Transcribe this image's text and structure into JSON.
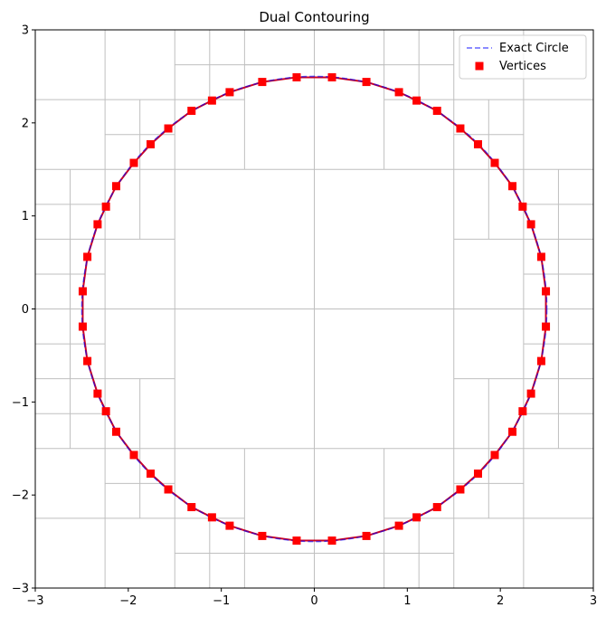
{
  "chart_data": {
    "type": "line",
    "title": "Dual Contouring",
    "xlabel": "",
    "ylabel": "",
    "xlim": [
      -3,
      3
    ],
    "ylim": [
      -3,
      3
    ],
    "x_ticks": [
      -3,
      -2,
      -1,
      0,
      1,
      2,
      3
    ],
    "y_ticks": [
      -3,
      -2,
      -1,
      0,
      1,
      2,
      3
    ],
    "x_tick_labels": [
      "−3",
      "−2",
      "−1",
      "0",
      "1",
      "2",
      "3"
    ],
    "y_tick_labels": [
      "−3",
      "−2",
      "−1",
      "0",
      "1",
      "2",
      "3"
    ],
    "grid": false,
    "legend_position": "top-right",
    "colors": {
      "circle": "#0000ff",
      "vertices": "#ff0000",
      "contour_line": "#cc0022",
      "quadtree_grid": "#bfbfbf",
      "axes": "#000000"
    },
    "series": [
      {
        "name": "Exact Circle",
        "style": "dashed",
        "center": [
          0,
          0
        ],
        "radius": 2.5
      },
      {
        "name": "Vertices",
        "marker": "square",
        "points": [
          [
            0.19,
            2.49
          ],
          [
            0.56,
            2.44
          ],
          [
            0.91,
            2.33
          ],
          [
            1.1,
            2.24
          ],
          [
            1.32,
            2.13
          ],
          [
            1.57,
            1.94
          ],
          [
            1.76,
            1.77
          ],
          [
            1.94,
            1.57
          ],
          [
            2.13,
            1.32
          ],
          [
            2.24,
            1.1
          ],
          [
            2.33,
            0.91
          ],
          [
            2.44,
            0.56
          ],
          [
            2.49,
            0.19
          ],
          [
            2.49,
            -0.19
          ],
          [
            2.44,
            -0.56
          ],
          [
            2.33,
            -0.91
          ],
          [
            2.24,
            -1.1
          ],
          [
            2.13,
            -1.32
          ],
          [
            1.94,
            -1.57
          ],
          [
            1.76,
            -1.77
          ],
          [
            1.57,
            -1.94
          ],
          [
            1.32,
            -2.13
          ],
          [
            1.1,
            -2.24
          ],
          [
            0.91,
            -2.33
          ],
          [
            0.56,
            -2.44
          ],
          [
            0.19,
            -2.49
          ],
          [
            -0.19,
            -2.49
          ],
          [
            -0.56,
            -2.44
          ],
          [
            -0.91,
            -2.33
          ],
          [
            -1.1,
            -2.24
          ],
          [
            -1.32,
            -2.13
          ],
          [
            -1.57,
            -1.94
          ],
          [
            -1.76,
            -1.77
          ],
          [
            -1.94,
            -1.57
          ],
          [
            -2.13,
            -1.32
          ],
          [
            -2.24,
            -1.1
          ],
          [
            -2.33,
            -0.91
          ],
          [
            -2.44,
            -0.56
          ],
          [
            -2.49,
            -0.19
          ],
          [
            -2.49,
            0.19
          ],
          [
            -2.44,
            0.56
          ],
          [
            -2.33,
            0.91
          ],
          [
            -2.24,
            1.1
          ],
          [
            -2.13,
            1.32
          ],
          [
            -1.94,
            1.57
          ],
          [
            -1.76,
            1.77
          ],
          [
            -1.57,
            1.94
          ],
          [
            -1.32,
            2.13
          ],
          [
            -1.1,
            2.24
          ],
          [
            -0.91,
            2.33
          ],
          [
            -0.56,
            2.44
          ],
          [
            -0.19,
            2.49
          ]
        ]
      }
    ],
    "quadtree_lines": {
      "vertical": [
        [
          0,
          -3,
          3
        ],
        [
          -1.5,
          -3,
          3
        ],
        [
          1.5,
          -3,
          3
        ],
        [
          -2.25,
          -3,
          -1.5
        ],
        [
          -2.25,
          1.5,
          3
        ],
        [
          2.25,
          -3,
          -1.5
        ],
        [
          2.25,
          1.5,
          3
        ],
        [
          -0.75,
          -3,
          -1.5
        ],
        [
          -0.75,
          1.5,
          3
        ],
        [
          0.75,
          -3,
          -1.5
        ],
        [
          0.75,
          1.5,
          3
        ],
        [
          -1.875,
          -2.25,
          -1.5
        ],
        [
          -1.875,
          1.5,
          2.25
        ],
        [
          1.875,
          -2.25,
          -1.5
        ],
        [
          1.875,
          1.5,
          2.25
        ],
        [
          -1.125,
          -3,
          -2.25
        ],
        [
          -1.125,
          2.25,
          3
        ],
        [
          1.125,
          -3,
          -2.25
        ],
        [
          1.125,
          2.25,
          3
        ],
        [
          -2.625,
          -1.5,
          1.5
        ],
        [
          2.625,
          -1.5,
          1.5
        ],
        [
          -1.875,
          -1.5,
          -0.75
        ],
        [
          -1.875,
          0.75,
          1.5
        ],
        [
          1.875,
          -1.5,
          -0.75
        ],
        [
          1.875,
          0.75,
          1.5
        ],
        [
          -2.625,
          -0.75,
          0.75
        ],
        [
          2.625,
          -0.75,
          0.75
        ],
        [
          -2.25,
          -1.5,
          1.5
        ],
        [
          2.25,
          -1.5,
          1.5
        ]
      ],
      "horizontal": [
        [
          0,
          -3,
          3
        ],
        [
          -1.5,
          -3,
          3
        ],
        [
          1.5,
          -3,
          3
        ],
        [
          -2.25,
          -3,
          -1.5
        ],
        [
          2.25,
          -3,
          -1.5
        ],
        [
          -2.25,
          1.5,
          3
        ],
        [
          2.25,
          1.5,
          3
        ],
        [
          -0.75,
          -3,
          -1.5
        ],
        [
          0.75,
          -3,
          -1.5
        ],
        [
          -0.75,
          1.5,
          3
        ],
        [
          0.75,
          1.5,
          3
        ],
        [
          -1.875,
          -2.25,
          -1.5
        ],
        [
          1.875,
          -2.25,
          -1.5
        ],
        [
          -1.875,
          1.5,
          2.25
        ],
        [
          1.875,
          1.5,
          2.25
        ],
        [
          -1.125,
          -3,
          -2.25
        ],
        [
          1.125,
          -3,
          -2.25
        ],
        [
          -1.125,
          2.25,
          3
        ],
        [
          1.125,
          2.25,
          3
        ],
        [
          -2.625,
          -1.5,
          1.5
        ],
        [
          2.625,
          -1.5,
          1.5
        ],
        [
          -2.25,
          -1.5,
          -0.75
        ],
        [
          -2.25,
          0.75,
          1.5
        ],
        [
          2.25,
          -1.5,
          -0.75
        ],
        [
          2.25,
          0.75,
          1.5
        ],
        [
          -0.375,
          -3,
          -2.25
        ],
        [
          0.375,
          -3,
          -2.25
        ],
        [
          -0.375,
          2.25,
          3
        ],
        [
          0.375,
          2.25,
          3
        ],
        [
          -2.625,
          -0.75,
          0.75
        ],
        [
          2.625,
          -0.75,
          0.75
        ]
      ]
    }
  }
}
